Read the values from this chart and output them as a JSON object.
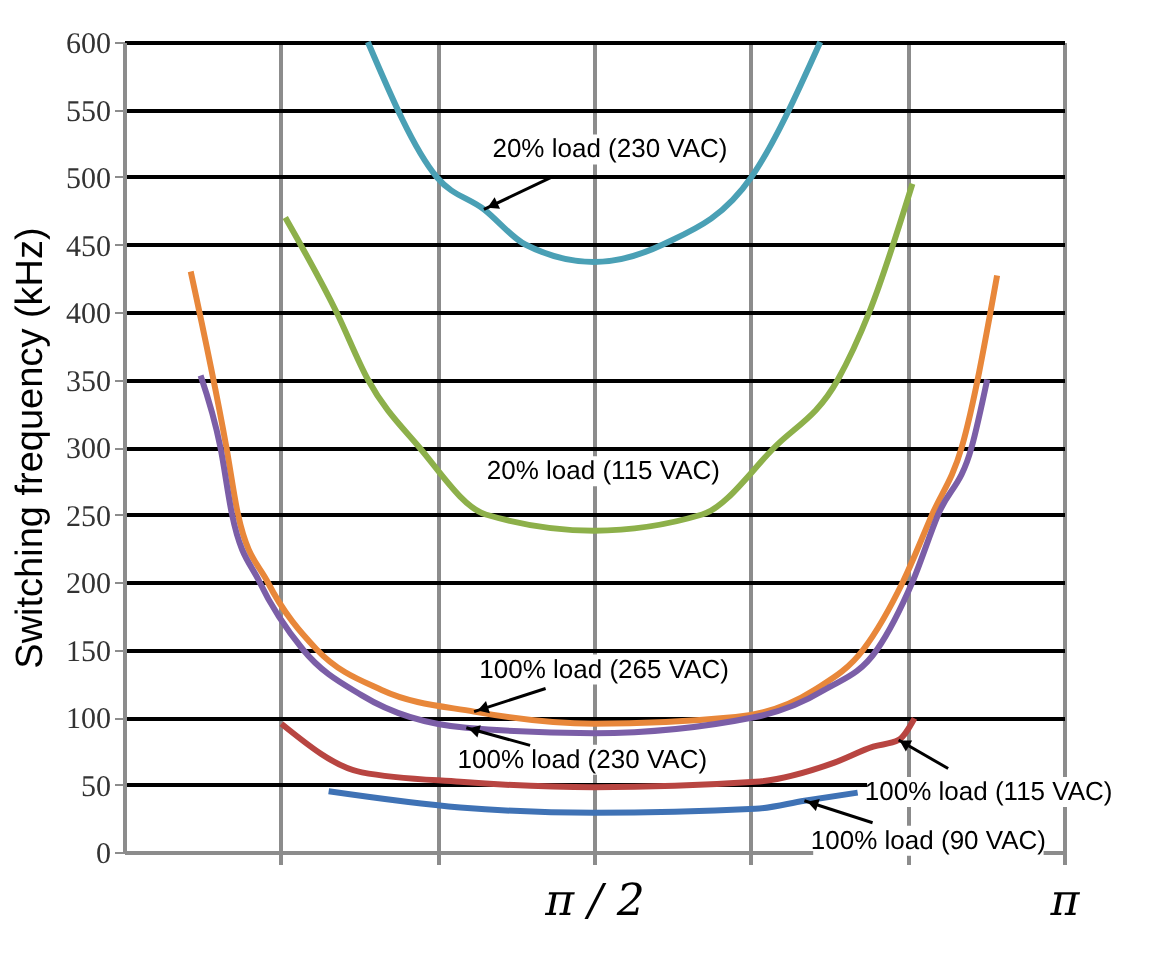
{
  "chart_data": {
    "type": "line",
    "ylabel": "Switching frequency (kHz)",
    "xlim": [
      0,
      3.1416
    ],
    "ylim": [
      0,
      600
    ],
    "xticks": [
      {
        "value": 0.5236,
        "label": null
      },
      {
        "value": 1.0472,
        "label": null
      },
      {
        "value": 1.5708,
        "label": "π / 2"
      },
      {
        "value": 2.0944,
        "label": null
      },
      {
        "value": 2.618,
        "label": null
      },
      {
        "value": 3.1416,
        "label": "π"
      }
    ],
    "yticks": [
      0,
      50,
      100,
      150,
      200,
      250,
      300,
      350,
      400,
      450,
      500,
      550,
      600
    ],
    "grid": true,
    "marker": "none",
    "line_style": "solid",
    "series": [
      {
        "color": "#4aa0b5",
        "x": [
          0.815,
          1.045,
          1.203,
          1.341,
          1.571,
          1.801,
          2.097,
          2.327
        ],
        "values": [
          600,
          500,
          476,
          450,
          437,
          450,
          500,
          600
        ]
      },
      {
        "color": "#8db04a",
        "x": [
          0.539,
          0.71,
          0.815,
          0.986,
          1.209,
          1.571,
          1.932,
          2.175,
          2.386,
          2.491,
          2.635
        ],
        "values": [
          470,
          400,
          350,
          300,
          250,
          238,
          250,
          300,
          350,
          400,
          495
        ]
      },
      {
        "color": "#e8873a",
        "x": [
          0.223,
          0.342,
          0.381,
          0.48,
          0.644,
          0.861,
          1.17,
          1.571,
          2.044,
          2.307,
          2.471,
          2.603,
          2.701,
          2.8,
          2.918
        ],
        "values": [
          430,
          300,
          250,
          200,
          150,
          120,
          104,
          95,
          100,
          120,
          150,
          200,
          250,
          300,
          427
        ]
      },
      {
        "color": "#7b5ea7",
        "x": [
          0.256,
          0.322,
          0.361,
          0.453,
          0.598,
          0.795,
          1.144,
          1.571,
          2.11,
          2.34,
          2.517,
          2.635,
          2.721,
          2.833,
          2.885
        ],
        "values": [
          353,
          300,
          250,
          200,
          150,
          116,
          92,
          88,
          100,
          120,
          150,
          200,
          250,
          300,
          350
        ]
      },
      {
        "color": "#b84541",
        "x": [
          0.526,
          0.795,
          1.124,
          1.571,
          2.11,
          2.372,
          2.504,
          2.589,
          2.642
        ],
        "values": [
          95,
          59,
          52,
          48,
          52,
          66,
          78,
          83,
          99
        ]
      },
      {
        "color": "#3f72b5",
        "x": [
          0.684,
          1.124,
          1.571,
          2.11,
          2.274,
          2.452
        ],
        "values": [
          45,
          33,
          29,
          32,
          38,
          44
        ]
      }
    ],
    "annotations": [
      {
        "text": "20% load (230 VAC)",
        "x": 1.203,
        "y": 476
      },
      "20% load (115 VAC)",
      {
        "text": "100% load (265 VAC)",
        "x": 1.17,
        "y": 104
      },
      {
        "text": "100% load (230 VAC)",
        "x": 1.144,
        "y": 92
      },
      {
        "text": "100% load (115 VAC)",
        "x": 2.589,
        "y": 83
      },
      {
        "text": "100% load (90 VAC)",
        "x": 2.274,
        "y": 38
      }
    ]
  }
}
